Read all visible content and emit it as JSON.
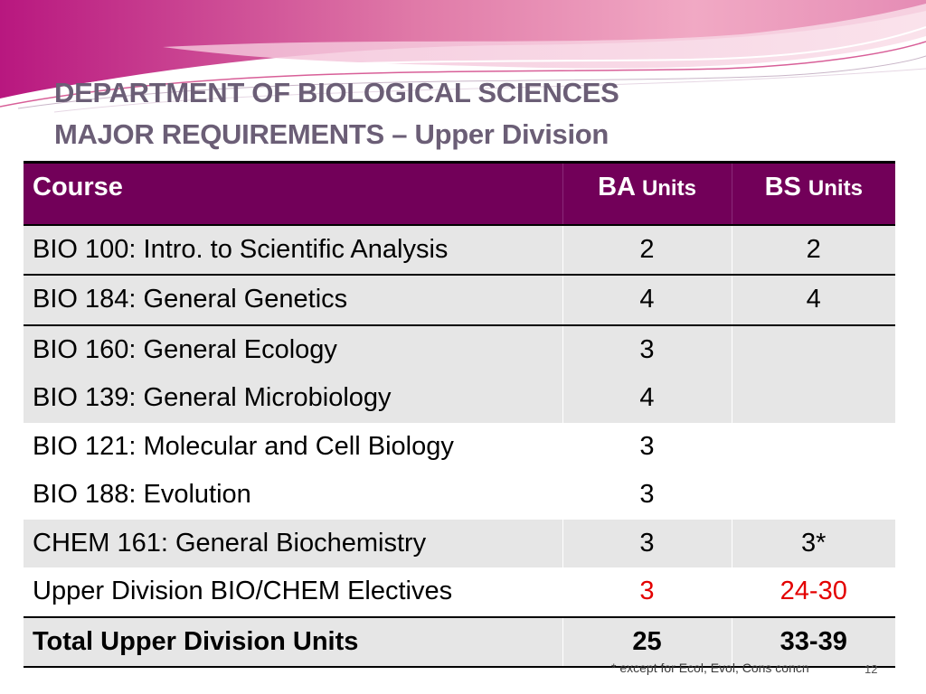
{
  "slide": {
    "title_line1": "DEPARTMENT OF BIOLOGICAL SCIENCES",
    "title_line2_main": "MAJOR REQUIREMENTS – ",
    "title_line2_sub": "Upper Division",
    "footnote": "* except for Ecol, Evol, Cons concn",
    "page_number": "12",
    "colors": {
      "header_bg": "#720059",
      "title_text": "#6b5e76",
      "highlight_red": "#e30000",
      "row_shade": "#e6e6e6"
    }
  },
  "table": {
    "header": {
      "course": "Course",
      "ba_abbr": "BA",
      "ba_unit": "Units",
      "bs_abbr": "BS",
      "bs_unit": "Units"
    },
    "rows": [
      {
        "course": "BIO 100:  Intro. to Scientific Analysis",
        "ba": "2",
        "bs": "2"
      },
      {
        "course": "BIO 184:  General Genetics",
        "ba": "4",
        "bs": "4"
      },
      {
        "course": "BIO 160:  General Ecology",
        "ba": "3",
        "bs": ""
      },
      {
        "course": "BIO 139:  General Microbiology",
        "ba": "4",
        "bs": ""
      },
      {
        "course": "BIO 121:  Molecular and Cell Biology",
        "ba": "3",
        "bs": ""
      },
      {
        "course": "BIO 188:  Evolution",
        "ba": "3",
        "bs": ""
      },
      {
        "course": "CHEM 161:  General Biochemistry",
        "ba": "3",
        "bs": "3*"
      },
      {
        "course": "Upper Division BIO/CHEM Electives",
        "ba": "3",
        "bs": "24-30"
      },
      {
        "course": "Total Upper Division Units",
        "ba": "25",
        "bs": "33-39"
      }
    ]
  }
}
